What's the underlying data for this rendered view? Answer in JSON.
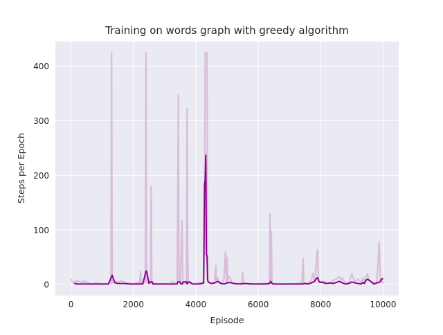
{
  "chart_data": {
    "type": "line",
    "title": "Training on words graph with greedy algorithm",
    "xlabel": "Episode",
    "ylabel": "Steps per Epoch",
    "xlim": [
      -500,
      10500
    ],
    "ylim": [
      -20,
      445
    ],
    "xticks": [
      0,
      2000,
      4000,
      6000,
      8000,
      10000
    ],
    "yticks": [
      0,
      100,
      200,
      300,
      400
    ],
    "grid": true,
    "legend": "none",
    "colors": {
      "background": "#eaeaf2",
      "grid": "#ffffff",
      "raw": "#d8bad8",
      "smoothed": "#8b008b"
    },
    "series": [
      {
        "role": "raw",
        "x": [
          0,
          50,
          100,
          150,
          200,
          250,
          300,
          350,
          400,
          450,
          500,
          600,
          700,
          800,
          900,
          1000,
          1100,
          1200,
          1280,
          1300,
          1320,
          1400,
          1500,
          1600,
          1700,
          1800,
          1900,
          2000,
          2100,
          2200,
          2230,
          2250,
          2300,
          2380,
          2400,
          2420,
          2500,
          2550,
          2570,
          2590,
          2600,
          2650,
          2700,
          2800,
          2900,
          3000,
          3100,
          3200,
          3250,
          3300,
          3400,
          3440,
          3460,
          3500,
          3560,
          3580,
          3600,
          3700,
          3720,
          3740,
          3760,
          3800,
          3900,
          4000,
          4100,
          4200,
          4250,
          4280,
          4300,
          4320,
          4340,
          4360,
          4380,
          4400,
          4450,
          4500,
          4550,
          4600,
          4640,
          4660,
          4700,
          4750,
          4800,
          4850,
          4900,
          4950,
          4980,
          5000,
          5020,
          5050,
          5100,
          5150,
          5200,
          5300,
          5400,
          5480,
          5500,
          5520,
          5600,
          5700,
          5800,
          5900,
          6000,
          6100,
          6200,
          6300,
          6360,
          6380,
          6400,
          6420,
          6440,
          6500,
          6600,
          6800,
          7000,
          7200,
          7400,
          7440,
          7460,
          7500,
          7600,
          7700,
          7750,
          7800,
          7850,
          7880,
          7900,
          7920,
          7950,
          8000,
          8050,
          8100,
          8200,
          8300,
          8400,
          8500,
          8550,
          8600,
          8650,
          8700,
          8750,
          8800,
          8900,
          9000,
          9050,
          9100,
          9150,
          9200,
          9300,
          9350,
          9400,
          9450,
          9500,
          9550,
          9600,
          9700,
          9800,
          9870,
          9890,
          9910,
          9950,
          10000
        ],
        "y": [
          10,
          5,
          3,
          8,
          4,
          7,
          5,
          2,
          8,
          3,
          6,
          2,
          1,
          3,
          2,
          1,
          2,
          1,
          2,
          425,
          3,
          6,
          4,
          7,
          5,
          3,
          2,
          1,
          4,
          3,
          25,
          2,
          4,
          3,
          425,
          5,
          2,
          3,
          180,
          4,
          6,
          3,
          2,
          1,
          2,
          1,
          2,
          1,
          6,
          2,
          3,
          347,
          4,
          3,
          117,
          4,
          2,
          3,
          322,
          60,
          3,
          2,
          1,
          2,
          3,
          4,
          5,
          80,
          425,
          425,
          425,
          425,
          10,
          5,
          3,
          2,
          4,
          3,
          35,
          8,
          12,
          5,
          3,
          4,
          10,
          60,
          5,
          50,
          4,
          15,
          12,
          4,
          3,
          2,
          2,
          2,
          22,
          3,
          2,
          1,
          2,
          1,
          2,
          1,
          2,
          1,
          2,
          130,
          4,
          97,
          3,
          2,
          1,
          1,
          1,
          2,
          3,
          48,
          2,
          3,
          2,
          8,
          20,
          5,
          30,
          60,
          64,
          10,
          8,
          5,
          4,
          6,
          3,
          2,
          8,
          10,
          12,
          15,
          8,
          12,
          6,
          4,
          3,
          20,
          12,
          6,
          8,
          10,
          4,
          12,
          6,
          14,
          20,
          8,
          6,
          4,
          3,
          78,
          60,
          4,
          8,
          2
        ]
      },
      {
        "role": "smoothed",
        "x": [
          100,
          200,
          400,
          600,
          800,
          1000,
          1200,
          1300,
          1320,
          1400,
          1420,
          1500,
          1700,
          1900,
          2100,
          2300,
          2400,
          2420,
          2500,
          2520,
          2600,
          2620,
          2700,
          2800,
          3000,
          3200,
          3400,
          3420,
          3500,
          3520,
          3560,
          3600,
          3700,
          3720,
          3760,
          3800,
          3900,
          4100,
          4200,
          4250,
          4280,
          4300,
          4320,
          4340,
          4360,
          4380,
          4400,
          4450,
          4500,
          4600,
          4700,
          4800,
          4900,
          5000,
          5100,
          5200,
          5400,
          5600,
          5800,
          6000,
          6200,
          6360,
          6400,
          6440,
          6480,
          6600,
          6800,
          7000,
          7200,
          7400,
          7500,
          7600,
          7700,
          7800,
          7850,
          7900,
          7950,
          8000,
          8050,
          8100,
          8200,
          8300,
          8400,
          8500,
          8600,
          8700,
          8800,
          8900,
          9000,
          9100,
          9200,
          9300,
          9350,
          9400,
          9450,
          9500,
          9600,
          9700,
          9800,
          9900,
          9950,
          10000
        ],
        "y": [
          2,
          1,
          1,
          1,
          1,
          1,
          1,
          15,
          17,
          4,
          3,
          2,
          2,
          1,
          1,
          1,
          24,
          25,
          2,
          5,
          5,
          1,
          1,
          1,
          1,
          1,
          1,
          5,
          5,
          1,
          1,
          5,
          5,
          1,
          5,
          5,
          1,
          1,
          2,
          3,
          185,
          190,
          237,
          55,
          52,
          8,
          5,
          3,
          2,
          3,
          6,
          2,
          1,
          3,
          4,
          2,
          1,
          2,
          1,
          1,
          1,
          2,
          6,
          2,
          1,
          1,
          1,
          1,
          1,
          1,
          2,
          1,
          3,
          6,
          10,
          13,
          5,
          4,
          5,
          3,
          2,
          3,
          2,
          4,
          6,
          3,
          1,
          2,
          5,
          3,
          2,
          1,
          4,
          2,
          8,
          10,
          6,
          1,
          3,
          5,
          10,
          11
        ]
      }
    ]
  }
}
